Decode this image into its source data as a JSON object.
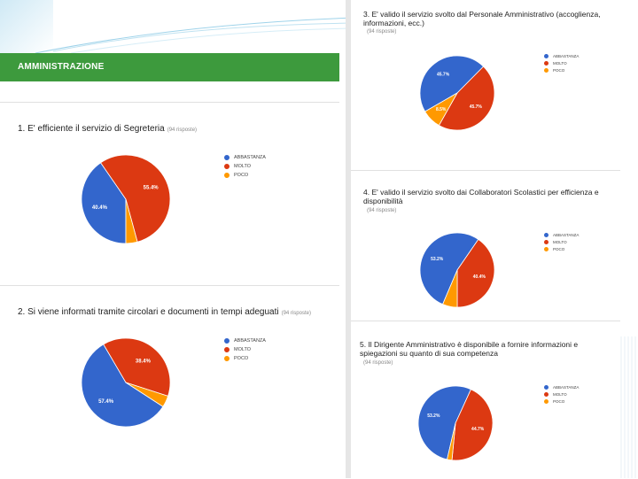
{
  "header": {
    "title": "AMMINISTRAZIONE"
  },
  "legend_labels": [
    "ABBASTANZA",
    "MOLTO",
    "POCO"
  ],
  "colors": {
    "ABBASTANZA": "#3366cc",
    "MOLTO": "#dc3912",
    "POCO": "#ff9900"
  },
  "questions": [
    {
      "title": "1. E' efficiente il servizio di Segreteria",
      "title_line2": "",
      "responses": "(94 risposte)"
    },
    {
      "title": "2. Si viene informati tramite circolari e documenti in tempi adeguati",
      "title_line2": "",
      "responses": "(94 risposte)"
    },
    {
      "title": "3. E' valido il servizio svolto dal Personale Amministrativo (accoglienza,",
      "title_line2": "informazioni, ecc.)",
      "responses": "(94 risposte)"
    },
    {
      "title": "4. E' valido il servizio svolto dai Collaboratori Scolastici per efficienza e",
      "title_line2": "disponibilità",
      "responses": "(94 risposte)"
    },
    {
      "title": "5. Il Dirigente Amministrativo è disponibile a fornire informazioni e",
      "title_line2": "spiegazioni su quanto di sua competenza",
      "responses": "(94 risposte)"
    }
  ],
  "chart_data": [
    {
      "type": "pie",
      "title": "1. E' efficiente il servizio di Segreteria",
      "categories": [
        "ABBASTANZA",
        "MOLTO",
        "POCO"
      ],
      "values": [
        40.4,
        55.4,
        4.2
      ],
      "data_labels": [
        "40.4%",
        "55.4%",
        ""
      ],
      "legend": "right"
    },
    {
      "type": "pie",
      "title": "2. Si viene informati tramite circolari e documenti in tempi adeguati",
      "categories": [
        "ABBASTANZA",
        "MOLTO",
        "POCO"
      ],
      "values": [
        57.4,
        38.4,
        4.2
      ],
      "data_labels": [
        "57.4%",
        "38.4%",
        ""
      ],
      "legend": "right"
    },
    {
      "type": "pie",
      "title": "3. E' valido il servizio svolto dal Personale Amministrativo (accoglienza, informazioni, ecc.)",
      "categories": [
        "ABBASTANZA",
        "MOLTO",
        "POCO"
      ],
      "values": [
        45.7,
        45.7,
        8.5
      ],
      "data_labels": [
        "45.7%",
        "45.7%",
        "8.5%"
      ],
      "legend": "right"
    },
    {
      "type": "pie",
      "title": "4. E' valido il servizio svolto dai Collaboratori Scolastici per efficienza e disponibilità",
      "categories": [
        "ABBASTANZA",
        "MOLTO",
        "POCO"
      ],
      "values": [
        53.2,
        40.4,
        6.4
      ],
      "data_labels": [
        "53.2%",
        "40.4%",
        ""
      ],
      "legend": "right"
    },
    {
      "type": "pie",
      "title": "5. Il Dirigente Amministrativo è disponibile a fornire informazioni e spiegazioni su quanto di sua competenza",
      "categories": [
        "ABBASTANZA",
        "MOLTO",
        "POCO"
      ],
      "values": [
        53.2,
        44.7,
        2.1
      ],
      "data_labels": [
        "53.2%",
        "44.7%",
        ""
      ],
      "legend": "right"
    }
  ]
}
